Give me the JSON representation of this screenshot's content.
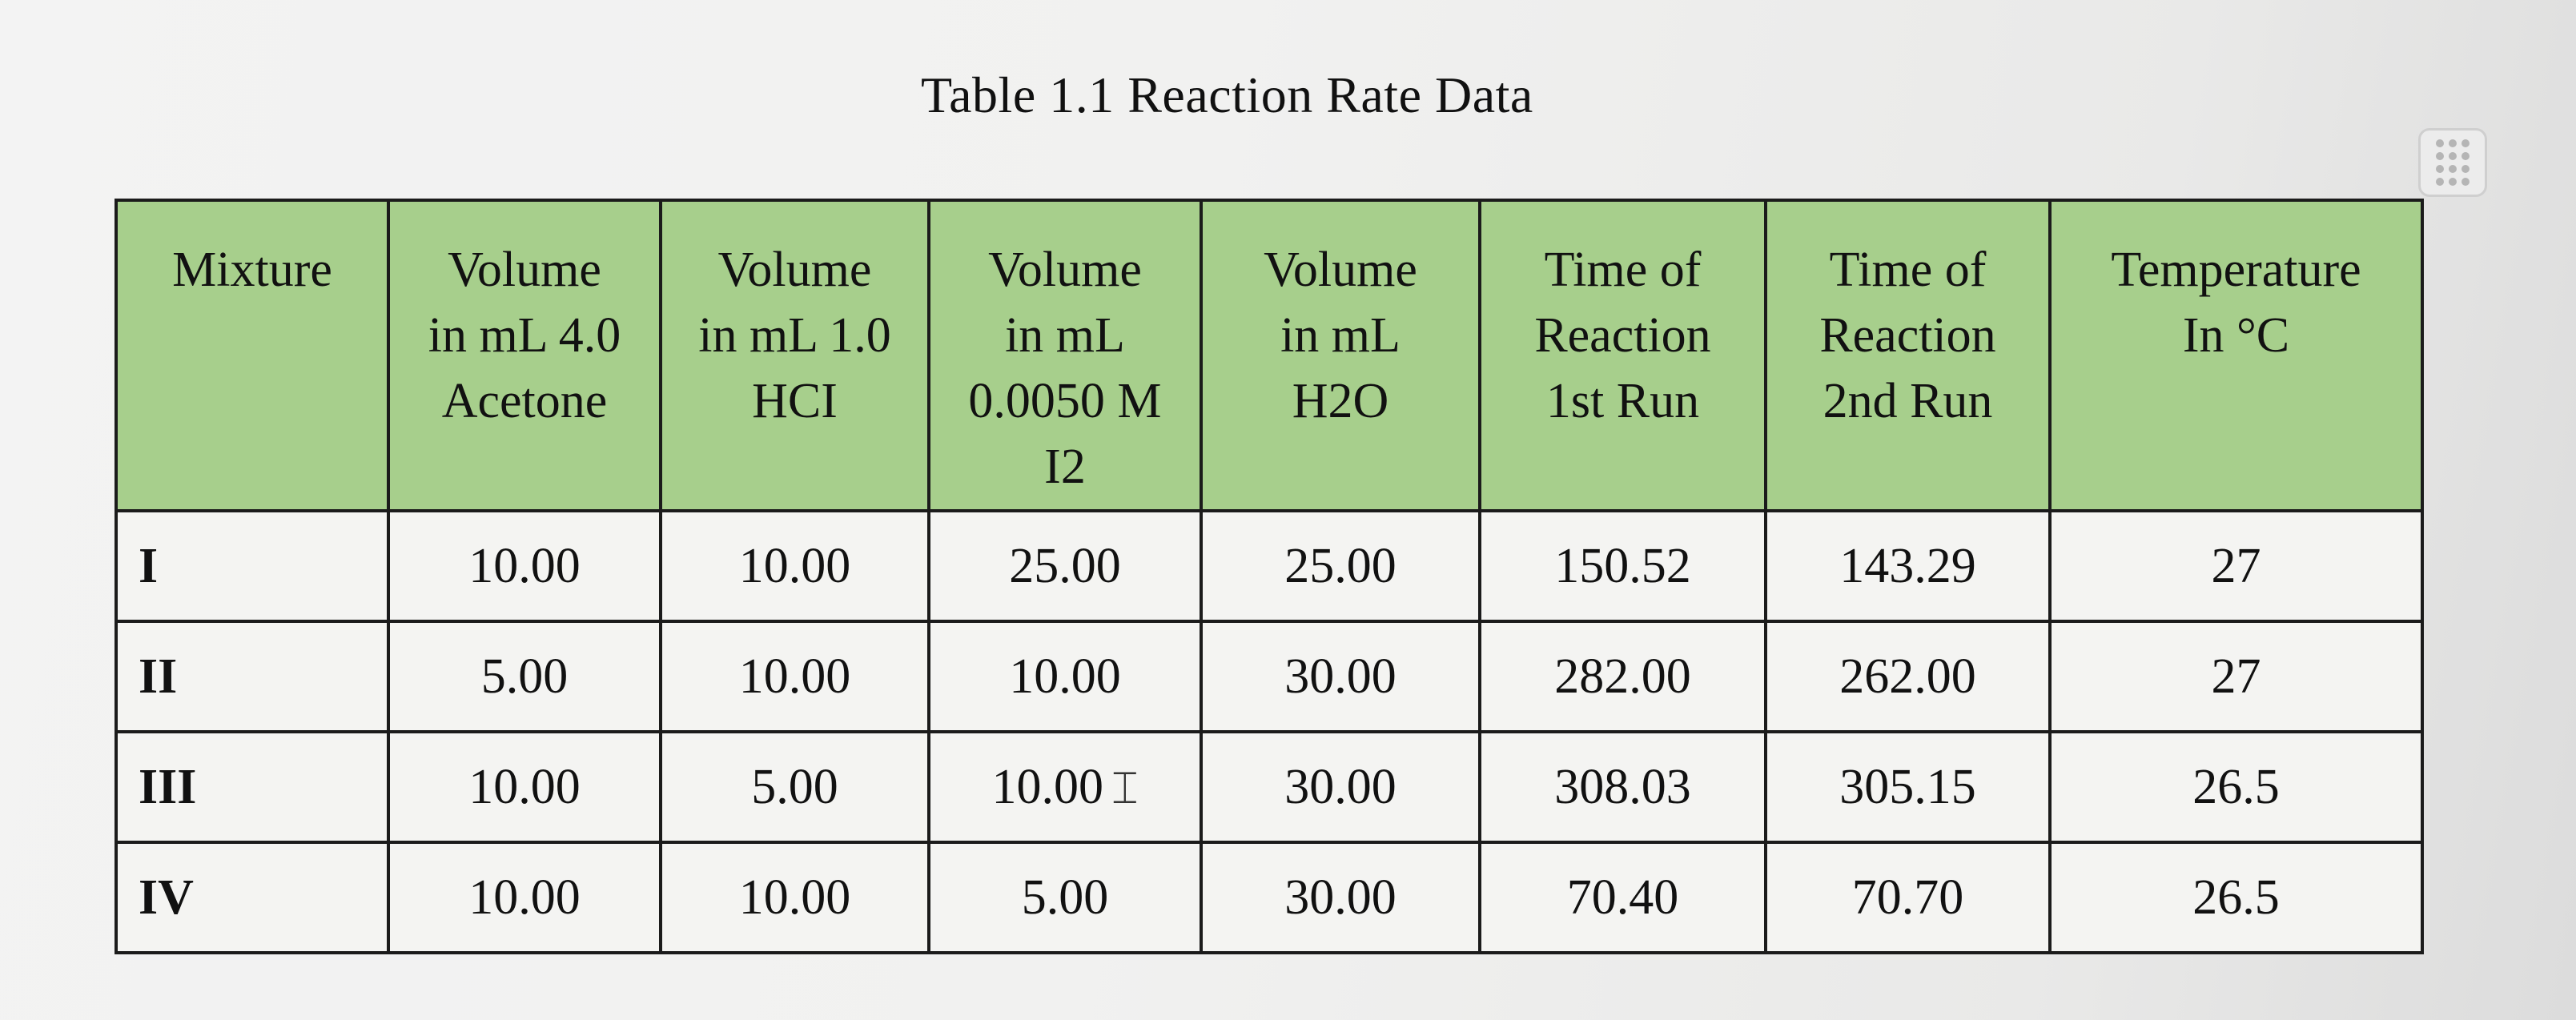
{
  "table": {
    "caption": "Table 1.1 Reaction Rate Data",
    "headers": [
      [
        "Mixture"
      ],
      [
        "Volume",
        "in mL 4.0",
        "Acetone"
      ],
      [
        "Volume",
        "in mL 1.0",
        "HCI"
      ],
      [
        "Volume",
        "in mL",
        "0.0050 M",
        "I2"
      ],
      [
        "Volume",
        "in mL",
        "H2O"
      ],
      [
        "Time of",
        "Reaction",
        "1st Run"
      ],
      [
        "Time of",
        "Reaction",
        "2nd Run"
      ],
      [
        "Temperature",
        "In °C"
      ]
    ],
    "rows": [
      [
        "I",
        "10.00",
        "10.00",
        "25.00",
        "25.00",
        "150.52",
        "143.29",
        "27"
      ],
      [
        "II",
        "5.00",
        "10.00",
        "10.00",
        "30.00",
        "282.00",
        "262.00",
        "27"
      ],
      [
        "III",
        "10.00",
        "5.00",
        "10.00",
        "30.00",
        "308.03",
        "305.15",
        "26.5"
      ],
      [
        "IV",
        "10.00",
        "10.00",
        "5.00",
        "30.00",
        "70.40",
        "70.70",
        "26.5"
      ]
    ]
  },
  "ui": {
    "drag_handle_icon": "drag-grip-icon",
    "text_cursor_icon": "text-cursor-ibeam-icon",
    "header_color": "#a7cf8c"
  }
}
